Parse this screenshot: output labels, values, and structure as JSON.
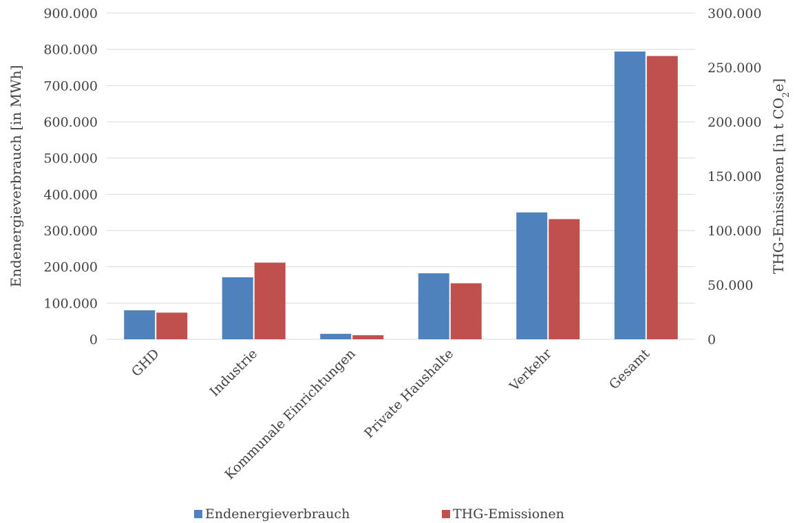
{
  "chart_data": {
    "type": "bar",
    "title": "",
    "categories": [
      "GHD",
      "Industrie",
      "Kommunale Einrichtungen",
      "Private Haushalte",
      "Verkehr",
      "Gesamt"
    ],
    "series": [
      {
        "name": "Endenergieverbrauch",
        "axis": "left",
        "color": "#4f81bd",
        "values": [
          80000,
          171000,
          15000,
          182000,
          350000,
          794000
        ]
      },
      {
        "name": "THG-Emissionen",
        "axis": "right",
        "color": "#c0504d",
        "values": [
          24500,
          70500,
          3700,
          51500,
          110500,
          260500
        ]
      }
    ],
    "y_left": {
      "label": "Endenergieverbrauch [in MWh]",
      "range": [
        0,
        900000
      ],
      "ticks": [
        "0",
        "100.000",
        "200.000",
        "300.000",
        "400.000",
        "500.000",
        "600.000",
        "700.000",
        "800.000",
        "900.000"
      ]
    },
    "y_right": {
      "label_main": "THG-Emissionen [in t CO",
      "label_sub": "2",
      "label_tail": "e]",
      "range": [
        0,
        300000
      ],
      "ticks": [
        "0",
        "50.000",
        "100.000",
        "150.000",
        "200.000",
        "250.000",
        "300.000"
      ]
    },
    "grid": true,
    "legend_position": "bottom"
  }
}
